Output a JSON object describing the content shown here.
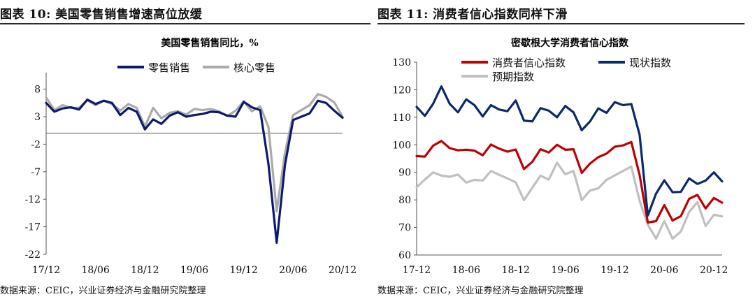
{
  "left": {
    "figure_title": "图表 10:  美国零售销售增速高位放缓",
    "source": "数据来源：CEIC，兴业证券经济与金融研究院整理"
  },
  "right": {
    "figure_title": "图表 11:  消费者信心指数同样下滑",
    "source": "数据来源：CEIC，兴业证券经济与金融研究院整理"
  },
  "chart_data": [
    {
      "type": "line",
      "title": "美国零售销售同比，%",
      "xlabel": "",
      "ylabel": "",
      "ylim": [
        -22,
        11
      ],
      "yticks": [
        8,
        3,
        -2,
        -7,
        -12,
        -17,
        -22
      ],
      "x_tick_labels": [
        "17/12",
        "18/06",
        "18/12",
        "19/06",
        "19/12",
        "20/06",
        "20/12"
      ],
      "x_tick_index": [
        0,
        6,
        12,
        18,
        24,
        30,
        36
      ],
      "x": [
        "2017-12",
        "2018-01",
        "2018-02",
        "2018-03",
        "2018-04",
        "2018-05",
        "2018-06",
        "2018-07",
        "2018-08",
        "2018-09",
        "2018-10",
        "2018-11",
        "2018-12",
        "2019-01",
        "2019-02",
        "2019-03",
        "2019-04",
        "2019-05",
        "2019-06",
        "2019-07",
        "2019-08",
        "2019-09",
        "2019-10",
        "2019-11",
        "2019-12",
        "2020-01",
        "2020-02",
        "2020-03",
        "2020-04",
        "2020-05",
        "2020-06",
        "2020-07",
        "2020-08",
        "2020-09",
        "2020-10",
        "2020-11",
        "2020-12"
      ],
      "legend_position": "top",
      "grid": false,
      "series": [
        {
          "name": "零售销售",
          "color": "#0b1a6e",
          "values": [
            5.5,
            3.9,
            4.5,
            4.7,
            4.3,
            6.1,
            5.3,
            5.9,
            5.5,
            3.3,
            4.6,
            3.9,
            0.7,
            2.5,
            1.7,
            3.2,
            3.8,
            3.0,
            3.3,
            3.5,
            3.9,
            3.8,
            3.2,
            3.0,
            5.7,
            4.7,
            4.2,
            -5.6,
            -19.9,
            -5.8,
            2.4,
            3.0,
            3.6,
            5.9,
            5.5,
            4.1,
            2.8
          ]
        },
        {
          "name": "核心零售",
          "color": "#aaaaaa",
          "values": [
            6.5,
            4.2,
            5.1,
            4.6,
            4.6,
            6.0,
            5.1,
            5.9,
            5.3,
            4.1,
            5.3,
            4.6,
            1.2,
            4.6,
            2.7,
            3.7,
            4.0,
            3.4,
            4.4,
            4.2,
            4.4,
            4.0,
            3.1,
            4.1,
            5.8,
            4.0,
            4.9,
            1.1,
            -14.2,
            -3.6,
            3.3,
            4.2,
            5.1,
            7.1,
            6.6,
            5.6,
            3.0
          ]
        }
      ]
    },
    {
      "type": "line",
      "title": "密歇根大学消费者信心指数",
      "xlabel": "",
      "ylabel": "",
      "ylim": [
        60,
        130
      ],
      "yticks": [
        60,
        70,
        80,
        90,
        100,
        110,
        120,
        130
      ],
      "x_tick_labels": [
        "17-12",
        "18-06",
        "18-12",
        "19-06",
        "19-12",
        "20-06",
        "20-12"
      ],
      "x_tick_index": [
        0,
        6,
        12,
        18,
        24,
        30,
        36
      ],
      "x": [
        "2017-12",
        "2018-01",
        "2018-02",
        "2018-03",
        "2018-04",
        "2018-05",
        "2018-06",
        "2018-07",
        "2018-08",
        "2018-09",
        "2018-10",
        "2018-11",
        "2018-12",
        "2019-01",
        "2019-02",
        "2019-03",
        "2019-04",
        "2019-05",
        "2019-06",
        "2019-07",
        "2019-08",
        "2019-09",
        "2019-10",
        "2019-11",
        "2019-12",
        "2020-01",
        "2020-02",
        "2020-03",
        "2020-04",
        "2020-05",
        "2020-06",
        "2020-07",
        "2020-08",
        "2020-09",
        "2020-10",
        "2020-11",
        "2020-12",
        "2021-01"
      ],
      "legend_position": "top-left",
      "grid": false,
      "series": [
        {
          "name": "消费者信心指数",
          "color": "#c00000",
          "values": [
            95.9,
            95.7,
            99.7,
            101.4,
            98.8,
            98.0,
            98.2,
            97.9,
            96.2,
            100.1,
            98.6,
            97.5,
            98.3,
            91.2,
            93.8,
            98.4,
            97.2,
            100.0,
            98.2,
            98.4,
            89.8,
            93.2,
            95.5,
            96.8,
            99.3,
            99.8,
            101.0,
            89.1,
            71.8,
            72.3,
            78.1,
            72.5,
            74.1,
            80.4,
            81.8,
            76.9,
            80.7,
            79.0
          ]
        },
        {
          "name": "现状指数",
          "color": "#0b2a6b",
          "values": [
            113.8,
            110.5,
            114.9,
            121.2,
            114.9,
            111.8,
            116.5,
            114.4,
            110.3,
            114.4,
            112.8,
            112.2,
            116.1,
            108.8,
            108.5,
            113.3,
            112.4,
            110.0,
            114.1,
            111.8,
            105.3,
            108.5,
            113.2,
            111.6,
            115.5,
            114.4,
            114.8,
            103.7,
            74.3,
            82.3,
            87.1,
            82.8,
            82.9,
            87.8,
            85.8,
            87.0,
            90.0,
            86.7
          ]
        },
        {
          "name": "预期指数",
          "color": "#c0c0c0",
          "values": [
            84.6,
            87.4,
            90.0,
            88.8,
            88.4,
            89.2,
            86.3,
            87.3,
            87.0,
            90.5,
            89.1,
            87.8,
            86.4,
            79.9,
            84.4,
            88.8,
            87.4,
            93.5,
            89.3,
            90.5,
            79.9,
            83.4,
            84.2,
            87.3,
            88.9,
            90.5,
            92.1,
            79.7,
            71.0,
            65.9,
            72.3,
            65.9,
            68.5,
            75.6,
            79.2,
            70.5,
            74.6,
            74.0
          ]
        }
      ]
    }
  ]
}
